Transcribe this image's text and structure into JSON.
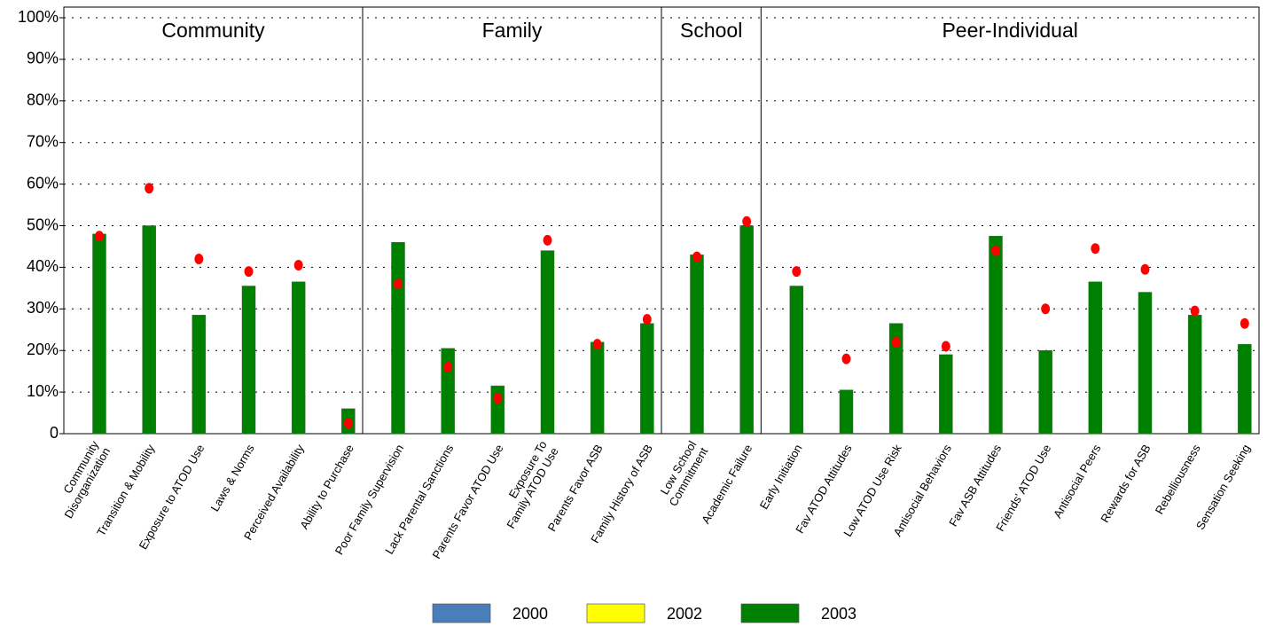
{
  "chart_data": {
    "type": "bar",
    "groups": [
      {
        "label": "Community",
        "categories": [
          [
            "Community",
            "Disorganization"
          ],
          [
            "Transition & Mobility"
          ],
          [
            "Exposure to ATOD Use"
          ],
          [
            "Laws & Norms"
          ],
          [
            "Perceived Availability"
          ],
          [
            "Ability to Purchase"
          ]
        ]
      },
      {
        "label": "Family",
        "categories": [
          [
            "Poor Family Supervision"
          ],
          [
            "Lack Parental Sanctions"
          ],
          [
            "Parents Favor ATOD Use"
          ],
          [
            "Exposure To",
            "Family ATOD Use"
          ],
          [
            "Parents Favor ASB"
          ],
          [
            "Family History of ASB"
          ]
        ]
      },
      {
        "label": "School",
        "categories": [
          [
            "Low School",
            "Commitment"
          ],
          [
            "Academic Failure"
          ]
        ]
      },
      {
        "label": "Peer-Individual",
        "categories": [
          [
            "Early Initiation"
          ],
          [
            "Fav ATOD Attitudes"
          ],
          [
            "Low ATOD Use Risk"
          ],
          [
            "Antisocial Behaviors"
          ],
          [
            "Fav ASB Attitudes"
          ],
          [
            "Friends' ATOD Use"
          ],
          [
            "Antisocial Peers"
          ],
          [
            "Rewards for ASB"
          ],
          [
            "Rebelliousness"
          ],
          [
            "Sensation Seeking"
          ]
        ]
      }
    ],
    "series": [
      {
        "name": "2000",
        "color": "#4a7ebb",
        "values": [
          null,
          null,
          null,
          null,
          null,
          null,
          null,
          null,
          null,
          null,
          null,
          null,
          null,
          null,
          null,
          null,
          null,
          null,
          null,
          null,
          null,
          null,
          null,
          null
        ]
      },
      {
        "name": "2002",
        "color": "#ffff00",
        "values": [
          null,
          null,
          null,
          null,
          null,
          null,
          null,
          null,
          null,
          null,
          null,
          null,
          null,
          null,
          null,
          null,
          null,
          null,
          null,
          null,
          null,
          null,
          null,
          null
        ]
      },
      {
        "name": "2003",
        "color": "#008000",
        "values": [
          48,
          50,
          28.5,
          35.5,
          36.5,
          6,
          46,
          20.5,
          11.5,
          44,
          22,
          26.5,
          43,
          50,
          35.5,
          10.5,
          26.5,
          19,
          47.5,
          20,
          36.5,
          34,
          28.5,
          21.5
        ]
      },
      {
        "type": "dot",
        "color": "#ff0000",
        "values": [
          47.5,
          59,
          42,
          39,
          40.5,
          2.5,
          36,
          16,
          8.5,
          46.5,
          21.5,
          27.5,
          42.5,
          51,
          39,
          18,
          22,
          21,
          44,
          30,
          44.5,
          39.5,
          29.5,
          26.5
        ]
      }
    ],
    "ylim": [
      0,
      100
    ],
    "yticks": [
      0,
      {
        "value": 10,
        "label": "10%"
      },
      {
        "value": 20,
        "label": "20%"
      },
      {
        "value": 30,
        "label": "30%"
      },
      {
        "value": 40,
        "label": "40%"
      },
      {
        "value": 50,
        "label": "50%"
      },
      {
        "value": 60,
        "label": "60%"
      },
      {
        "value": 70,
        "label": "70%"
      },
      {
        "value": 80,
        "label": "80%"
      },
      {
        "value": 90,
        "label": "90%"
      },
      {
        "value": 100,
        "label": "100%"
      }
    ],
    "grid": true
  }
}
